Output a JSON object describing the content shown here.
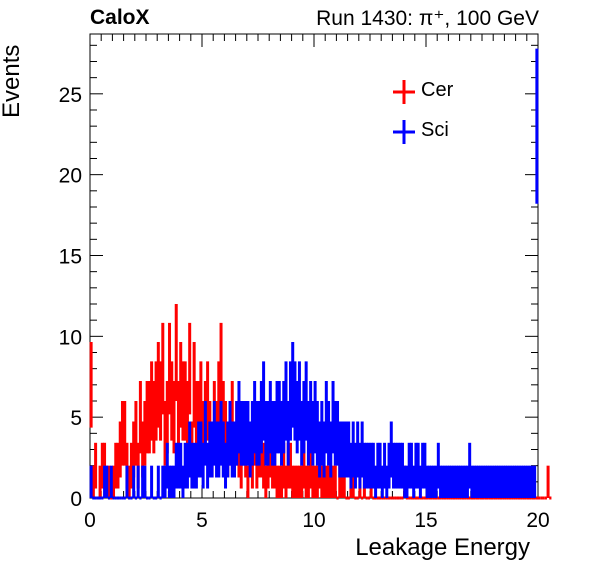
{
  "header": {
    "experiment": "CaloX",
    "run": "Run 1430: π⁺, 100 GeV"
  },
  "chart_data": {
    "type": "histogram",
    "title": "",
    "xlabel": "Leakage Energy",
    "ylabel": "Events",
    "xlim": [
      0,
      20
    ],
    "ylim": [
      0,
      28.7
    ],
    "xticks": [
      0,
      5,
      10,
      15,
      20
    ],
    "yticks": [
      0,
      5,
      10,
      15,
      20,
      25
    ],
    "grid": false,
    "legend_position": "top-right",
    "bin_width": 0.1,
    "series": [
      {
        "name": "Cer",
        "color": "#ff0000",
        "values": [
          7,
          1,
          2,
          0,
          1,
          2,
          2,
          1,
          1,
          0,
          1,
          2,
          2,
          3,
          4,
          4,
          2,
          1,
          2,
          3,
          4,
          2,
          5,
          3,
          4,
          5,
          5,
          6,
          5,
          6,
          7,
          6,
          8,
          4,
          5,
          8,
          6,
          5,
          9,
          5,
          7,
          6,
          6,
          5,
          8,
          3,
          7,
          5,
          5,
          6,
          4,
          5,
          6,
          4,
          3,
          5,
          4,
          6,
          8,
          5,
          4,
          3,
          4,
          5,
          3,
          4,
          3,
          2,
          4,
          3,
          1,
          3,
          2,
          4,
          2,
          3,
          3,
          2,
          1,
          2,
          3,
          2,
          2,
          1,
          1,
          1,
          2,
          1,
          2,
          2,
          1,
          1,
          1,
          1,
          1,
          2,
          1,
          1,
          2,
          1,
          1,
          1,
          2,
          1,
          1,
          1,
          1,
          1,
          1,
          1,
          0,
          1,
          1,
          1,
          0,
          0,
          1,
          1,
          0,
          0,
          1,
          0,
          1,
          0,
          0,
          1,
          0,
          0,
          0,
          0,
          0,
          0,
          0,
          0,
          0,
          0,
          0,
          0,
          0,
          0,
          1,
          0,
          0,
          0,
          0,
          0,
          0,
          0,
          0,
          0,
          0,
          0,
          0,
          0,
          0,
          0,
          0,
          0,
          0,
          0,
          0,
          0,
          0,
          0,
          0,
          0,
          0,
          0,
          0,
          0,
          0,
          0,
          0,
          0,
          0,
          0,
          0,
          0,
          0,
          0,
          0,
          0,
          0,
          0,
          0,
          0,
          0,
          0,
          0,
          0,
          0,
          0,
          0,
          0,
          0,
          0,
          0,
          0,
          0,
          0,
          0,
          0,
          0,
          0,
          1,
          0
        ]
      },
      {
        "name": "Sci",
        "color": "#0000ff",
        "values": [
          1,
          0,
          0,
          0,
          0,
          0,
          1,
          1,
          0,
          1,
          0,
          0,
          0,
          0,
          0,
          0,
          1,
          0,
          0,
          1,
          0,
          1,
          0,
          1,
          1,
          0,
          0,
          1,
          0,
          0,
          1,
          0,
          1,
          1,
          2,
          1,
          1,
          1,
          2,
          2,
          2,
          1,
          2,
          2,
          3,
          2,
          2,
          2,
          3,
          3,
          2,
          4,
          2,
          3,
          3,
          4,
          3,
          3,
          4,
          3,
          2,
          3,
          4,
          3,
          3,
          4,
          5,
          4,
          4,
          4,
          4,
          3,
          4,
          5,
          4,
          4,
          5,
          6,
          4,
          4,
          5,
          4,
          4,
          5,
          5,
          4,
          5,
          6,
          4,
          6,
          7,
          6,
          5,
          6,
          4,
          5,
          6,
          4,
          5,
          4,
          5,
          4,
          3,
          4,
          3,
          5,
          4,
          3,
          5,
          4,
          4,
          3,
          3,
          3,
          3,
          3,
          2,
          3,
          2,
          3,
          2,
          3,
          2,
          2,
          2,
          2,
          2,
          1,
          2,
          2,
          1,
          2,
          1,
          2,
          3,
          2,
          2,
          2,
          2,
          2,
          1,
          1,
          2,
          2,
          1,
          2,
          2,
          1,
          2,
          2,
          1,
          1,
          1,
          1,
          1,
          2,
          1,
          1,
          1,
          1,
          1,
          1,
          1,
          1,
          1,
          1,
          1,
          1,
          1,
          2,
          1,
          1,
          1,
          1,
          1,
          1,
          1,
          1,
          1,
          1,
          1,
          1,
          1,
          1,
          1,
          1,
          1,
          1,
          1,
          1,
          1,
          1,
          1,
          1,
          1,
          1,
          1,
          1,
          1,
          23
        ]
      }
    ]
  }
}
